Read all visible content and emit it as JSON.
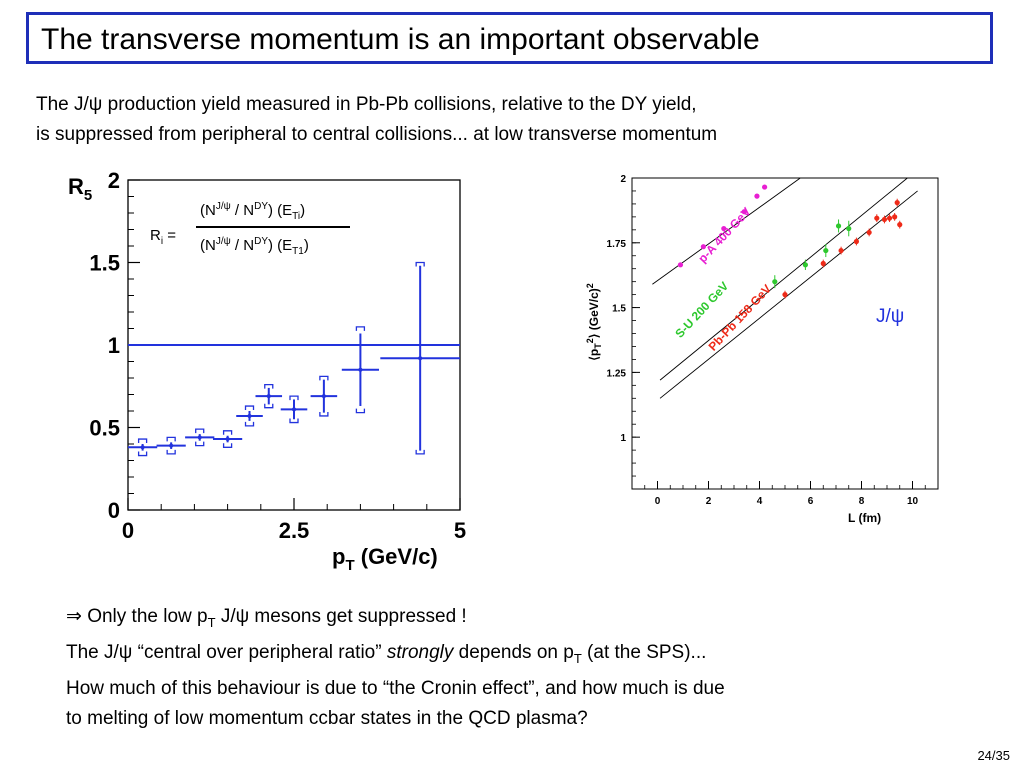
{
  "slide": {
    "title": "The transverse momentum is an important observable",
    "intro_line1": "The J/ψ production yield measured in Pb-Pb collisions, relative to the DY yield,",
    "intro_line2": "is suppressed from peripheral to central collisions... at low transverse momentum",
    "bottom_line1_arrow": "⇒",
    "bottom_line1_a": " Only the low p",
    "bottom_line1_sub": "T",
    "bottom_line1_b": " J/ψ mesons get suppressed !",
    "bottom_line2_a": "The J/ψ “central over peripheral ratio” ",
    "bottom_line2_em": "strongly",
    "bottom_line2_b": " depends on p",
    "bottom_line2_sub": "T",
    "bottom_line2_c": " (at the SPS)...",
    "bottom_line3": "How much of this behaviour is due to “the Cronin effect”, and how much is due",
    "bottom_line4": "to melting of low momentum ccbar states in the QCD plasma?",
    "page_number": "24/35"
  },
  "formula": {
    "lhs": "R",
    "lhs_sub": "i",
    "eq": " =",
    "num_a": "(N",
    "num_sup1": "J/ψ",
    "num_b": " / N",
    "num_sup2": "DY",
    "num_c": ") (E",
    "num_sub": "Ti",
    "num_d": ")",
    "den_a": "(N",
    "den_sup1": "J/ψ",
    "den_b": " / N",
    "den_sup2": "DY",
    "den_c": ") (E",
    "den_sub": "T1",
    "den_d": ")"
  },
  "chart_data": [
    {
      "type": "scatter",
      "title": "",
      "ylabel": "R",
      "ylabel_sub": "5",
      "xlabel": "p",
      "xlabel_sub": "T",
      "xlabel_rest": " (GeV/c)",
      "xlim": [
        0,
        5
      ],
      "ylim": [
        0,
        2
      ],
      "x_ticks": [
        "0",
        "2.5",
        "5"
      ],
      "x_tick_values": [
        0,
        2.5,
        5
      ],
      "y_ticks": [
        "0",
        "0.5",
        "1",
        "1.5",
        "2"
      ],
      "y_tick_values": [
        0,
        0.5,
        1,
        1.5,
        2
      ],
      "reference_line": 1,
      "color": "#2233dd",
      "points": [
        {
          "x": 0.22,
          "xerr": 0.22,
          "y": 0.38,
          "err": 0.02,
          "sys": 0.05
        },
        {
          "x": 0.65,
          "xerr": 0.22,
          "y": 0.39,
          "err": 0.02,
          "sys": 0.05
        },
        {
          "x": 1.08,
          "xerr": 0.22,
          "y": 0.44,
          "err": 0.02,
          "sys": 0.05
        },
        {
          "x": 1.5,
          "xerr": 0.22,
          "y": 0.43,
          "err": 0.02,
          "sys": 0.05
        },
        {
          "x": 1.83,
          "xerr": 0.2,
          "y": 0.57,
          "err": 0.03,
          "sys": 0.06
        },
        {
          "x": 2.12,
          "xerr": 0.2,
          "y": 0.69,
          "err": 0.05,
          "sys": 0.07
        },
        {
          "x": 2.5,
          "xerr": 0.2,
          "y": 0.61,
          "err": 0.06,
          "sys": 0.08
        },
        {
          "x": 2.95,
          "xerr": 0.2,
          "y": 0.69,
          "err": 0.1,
          "sys": 0.12
        },
        {
          "x": 3.5,
          "xerr": 0.28,
          "y": 0.85,
          "err": 0.22,
          "sys": 0.26
        },
        {
          "x": 4.4,
          "xerr": 0.6,
          "y": 0.92,
          "err": 0.56,
          "sys": 0.58
        }
      ]
    },
    {
      "type": "scatter",
      "title": "",
      "ylabel": "⟨p",
      "ylabel_sub": "T",
      "ylabel_sup": "2",
      "ylabel_rest": "⟩ (GeV/c)",
      "ylabel_sup2": "2",
      "xlabel": "L (fm)",
      "xlim": [
        -1,
        11
      ],
      "ylim": [
        0.8,
        2.0
      ],
      "x_ticks": [
        "0",
        "2",
        "4",
        "6",
        "8",
        "10"
      ],
      "x_tick_values": [
        0,
        2,
        4,
        6,
        8,
        10
      ],
      "y_ticks": [
        "1",
        "1.25",
        "1.5",
        "1.75",
        "2"
      ],
      "y_tick_values": [
        1,
        1.25,
        1.5,
        1.75,
        2
      ],
      "annotation": "J/ψ",
      "annotation_color": "#2233dd",
      "series": [
        {
          "name": "p-A 400 GeV",
          "color": "#e81fd2",
          "fit": [
            [
              -0.2,
              1.59
            ],
            [
              5.6,
              2.0
            ]
          ],
          "points": [
            {
              "x": 0.9,
              "y": 1.665,
              "err": 0.006
            },
            {
              "x": 1.8,
              "y": 1.735,
              "err": 0.006
            },
            {
              "x": 2.6,
              "y": 1.805,
              "err": 0.006
            },
            {
              "x": 3.4,
              "y": 1.87,
              "err": 0.006
            },
            {
              "x": 3.9,
              "y": 1.93,
              "err": 0.006
            },
            {
              "x": 4.2,
              "y": 1.965,
              "err": 0.006
            }
          ]
        },
        {
          "name": "S-U 200 GeV",
          "color": "#2ec82e",
          "fit": [
            [
              0.1,
              1.22
            ],
            [
              9.8,
              2.0
            ]
          ],
          "points": [
            {
              "x": 4.6,
              "y": 1.6,
              "err": 0.025
            },
            {
              "x": 5.8,
              "y": 1.665,
              "err": 0.02
            },
            {
              "x": 6.6,
              "y": 1.72,
              "err": 0.025
            },
            {
              "x": 7.1,
              "y": 1.815,
              "err": 0.025
            },
            {
              "x": 7.5,
              "y": 1.805,
              "err": 0.03
            }
          ]
        },
        {
          "name": "Pb-Pb 158 GeV",
          "color": "#ee2a18",
          "fit": [
            [
              0.1,
              1.15
            ],
            [
              10.2,
              1.95
            ]
          ],
          "points": [
            {
              "x": 5.0,
              "y": 1.55,
              "err": 0.015
            },
            {
              "x": 6.5,
              "y": 1.67,
              "err": 0.015
            },
            {
              "x": 7.2,
              "y": 1.72,
              "err": 0.015
            },
            {
              "x": 7.8,
              "y": 1.755,
              "err": 0.015
            },
            {
              "x": 8.3,
              "y": 1.79,
              "err": 0.015
            },
            {
              "x": 8.6,
              "y": 1.845,
              "err": 0.015
            },
            {
              "x": 8.9,
              "y": 1.84,
              "err": 0.015
            },
            {
              "x": 9.1,
              "y": 1.845,
              "err": 0.015
            },
            {
              "x": 9.3,
              "y": 1.85,
              "err": 0.015
            },
            {
              "x": 9.4,
              "y": 1.905,
              "err": 0.015
            },
            {
              "x": 9.5,
              "y": 1.82,
              "err": 0.015
            }
          ]
        }
      ]
    }
  ]
}
